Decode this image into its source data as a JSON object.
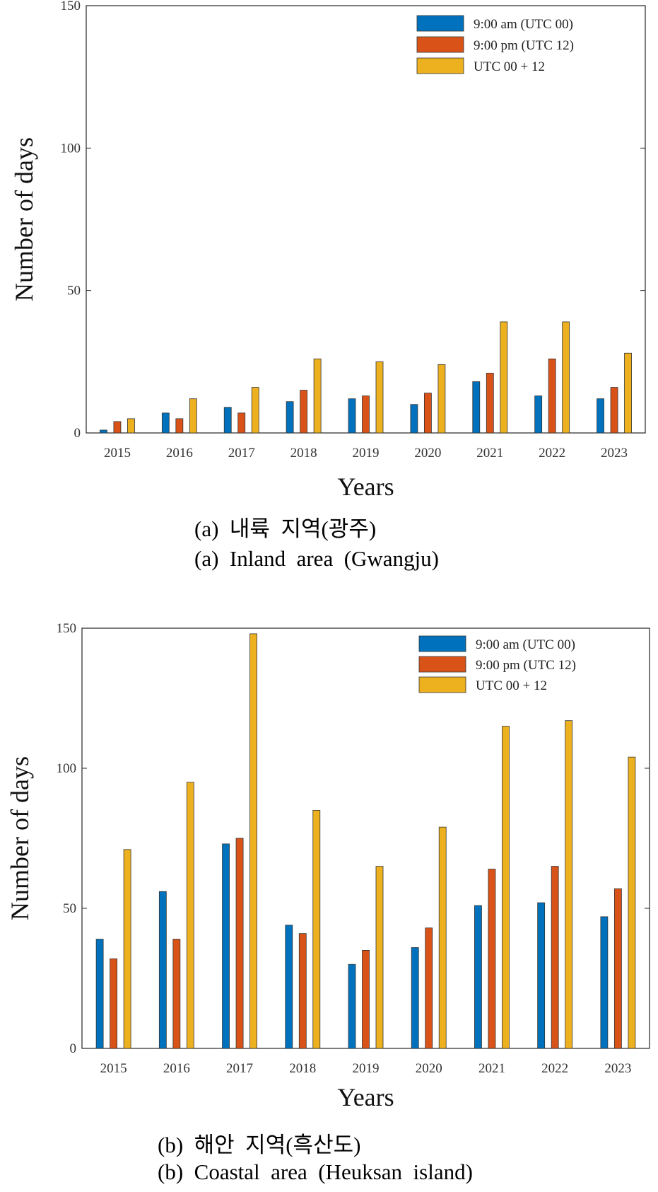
{
  "chart_data": [
    {
      "type": "bar",
      "panel": "a",
      "categories": [
        "2015",
        "2016",
        "2017",
        "2018",
        "2019",
        "2020",
        "2021",
        "2022",
        "2023"
      ],
      "series": [
        {
          "name": "9:00 am (UTC 00)",
          "color": "#0072BD",
          "values": [
            1,
            7,
            9,
            11,
            12,
            10,
            18,
            13,
            12
          ]
        },
        {
          "name": "9:00 pm (UTC 12)",
          "color": "#D95319",
          "values": [
            4,
            5,
            7,
            15,
            13,
            14,
            21,
            26,
            16
          ]
        },
        {
          "name": "UTC 00 + 12",
          "color": "#EDB120",
          "values": [
            5,
            12,
            16,
            26,
            25,
            24,
            39,
            39,
            28
          ]
        }
      ],
      "xlabel": "Years",
      "ylabel": "Number of days",
      "ylim": [
        0,
        150
      ],
      "yticks": [
        0,
        50,
        100,
        150
      ],
      "legend_position": "top-right",
      "caption_ko": "(a)  내륙  지역(광주)",
      "caption_en": "(a)  Inland  area  (Gwangju)"
    },
    {
      "type": "bar",
      "panel": "b",
      "categories": [
        "2015",
        "2016",
        "2017",
        "2018",
        "2019",
        "2020",
        "2021",
        "2022",
        "2023"
      ],
      "series": [
        {
          "name": "9:00 am (UTC 00)",
          "color": "#0072BD",
          "values": [
            39,
            56,
            73,
            44,
            30,
            36,
            51,
            52,
            47
          ]
        },
        {
          "name": "9:00 pm (UTC 12)",
          "color": "#D95319",
          "values": [
            32,
            39,
            75,
            41,
            35,
            43,
            64,
            65,
            57
          ]
        },
        {
          "name": "UTC 00 + 12",
          "color": "#EDB120",
          "values": [
            71,
            95,
            148,
            85,
            65,
            79,
            115,
            117,
            104
          ]
        }
      ],
      "xlabel": "Years",
      "ylabel": "Number of days",
      "ylim": [
        0,
        150
      ],
      "yticks": [
        0,
        50,
        100,
        150
      ],
      "legend_position": "top-right",
      "caption_ko": "(b)  해안  지역(흑산도)",
      "caption_en": "(b)  Coastal  area  (Heuksan  island)"
    }
  ]
}
